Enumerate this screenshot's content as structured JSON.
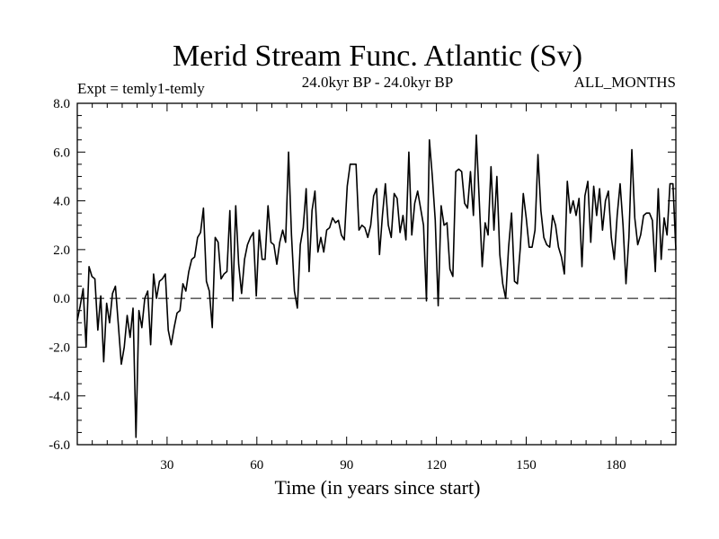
{
  "chart_data": {
    "type": "line",
    "title": "Merid Stream Func. Atlantic (Sv)",
    "subtitle_left": "Expt = temly1-temly",
    "subtitle_center": "24.0kyr BP - 24.0kyr BP",
    "subtitle_right": "ALL_MONTHS",
    "xlabel": "Time (in years since start)",
    "ylabel": "",
    "xlim": [
      0,
      200
    ],
    "ylim": [
      -6,
      8
    ],
    "x_ticks": [
      30,
      60,
      90,
      120,
      150,
      180
    ],
    "x_tick_labels": [
      "30",
      "60",
      "90",
      "120",
      "150",
      "180"
    ],
    "y_ticks": [
      -6,
      -4,
      -2,
      0,
      2,
      4,
      6,
      8
    ],
    "y_tick_labels": [
      "-6.0",
      "-4.0",
      "-2.0",
      "0.0",
      "2.0",
      "4.0",
      "6.0",
      "8.0"
    ],
    "reference_line": {
      "y": 0,
      "style": "dashed"
    },
    "series": [
      {
        "name": "Merid Stream Func.",
        "values": [
          -0.9,
          -0.3,
          0.4,
          -2.0,
          1.3,
          0.9,
          0.8,
          -1.3,
          0.1,
          -2.6,
          -0.2,
          -1.0,
          0.2,
          0.5,
          -1.1,
          -2.7,
          -2.0,
          -0.7,
          -1.6,
          -0.4,
          -5.7,
          -0.5,
          -1.2,
          0.0,
          0.3,
          -1.9,
          1.0,
          0.0,
          0.7,
          0.8,
          1.0,
          -1.3,
          -1.9,
          -1.2,
          -0.6,
          -0.5,
          0.6,
          0.3,
          1.1,
          1.6,
          1.7,
          2.5,
          2.7,
          3.7,
          0.7,
          0.3,
          -1.2,
          2.5,
          2.3,
          0.8,
          1.0,
          1.1,
          3.6,
          -0.1,
          3.8,
          1.4,
          0.2,
          1.6,
          2.2,
          2.5,
          2.7,
          0.1,
          2.8,
          1.6,
          1.6,
          3.8,
          2.3,
          2.2,
          1.4,
          2.3,
          2.8,
          2.3,
          6.0,
          2.6,
          0.3,
          -0.4,
          2.2,
          2.9,
          4.5,
          1.1,
          3.6,
          4.4,
          1.9,
          2.5,
          1.9,
          2.8,
          2.9,
          3.3,
          3.1,
          3.2,
          2.6,
          2.4,
          4.6,
          5.5,
          5.5,
          5.5,
          2.8,
          3.0,
          2.9,
          2.5,
          3.0,
          4.2,
          4.5,
          1.8,
          3.4,
          4.7,
          3.0,
          2.5,
          4.3,
          4.1,
          2.7,
          3.4,
          2.4,
          6.0,
          2.6,
          3.9,
          4.4,
          3.7,
          3.0,
          -0.1,
          6.5,
          5.0,
          3.2,
          -0.3,
          3.8,
          3.0,
          3.1,
          1.2,
          0.9,
          5.2,
          5.3,
          5.2,
          3.9,
          3.7,
          5.2,
          3.4,
          6.7,
          4.0,
          1.3,
          3.1,
          2.6,
          5.4,
          2.8,
          5.0,
          1.8,
          0.6,
          0.0,
          2.1,
          3.5,
          0.7,
          0.6,
          2.1,
          4.3,
          3.3,
          2.1,
          2.1,
          2.8,
          5.9,
          3.6,
          2.5,
          2.2,
          2.1,
          3.4,
          3.0,
          2.1,
          1.7,
          1.0,
          4.8,
          3.5,
          4.0,
          3.4,
          4.1,
          1.3,
          4.2,
          4.8,
          2.3,
          4.6,
          3.4,
          4.5,
          2.8,
          4.0,
          4.4,
          2.5,
          1.6,
          3.4,
          4.7,
          3.0,
          0.6,
          2.5,
          6.1,
          3.3,
          2.2,
          2.6,
          3.4,
          3.5,
          3.5,
          3.2,
          1.1,
          4.5,
          1.6,
          3.3,
          2.6,
          4.7,
          4.7,
          2.0
        ]
      }
    ]
  }
}
